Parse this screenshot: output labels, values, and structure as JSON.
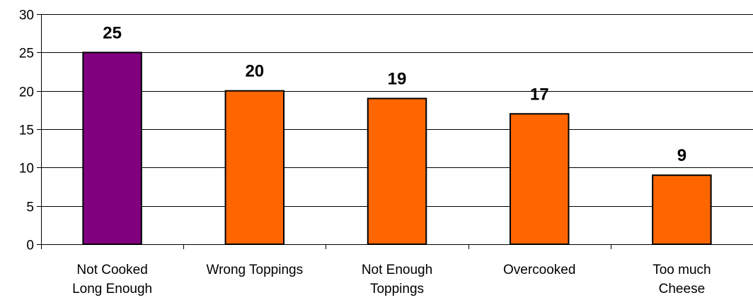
{
  "chart_data": {
    "type": "bar",
    "categories": [
      [
        "Not Cooked",
        "Long Enough"
      ],
      [
        "Wrong Toppings"
      ],
      [
        "Not Enough",
        "Toppings"
      ],
      [
        "Overcooked"
      ],
      [
        "Too much",
        "Cheese"
      ]
    ],
    "values": [
      25,
      20,
      19,
      17,
      9
    ],
    "bar_colors": [
      "#800080",
      "#FF6600",
      "#FF6600",
      "#FF6600",
      "#FF6600"
    ],
    "ylim": [
      0,
      30
    ],
    "yticks": [
      0,
      5,
      10,
      15,
      20,
      25,
      30
    ],
    "grid": true,
    "data_labels": true,
    "title": "",
    "xlabel": "",
    "ylabel": ""
  }
}
